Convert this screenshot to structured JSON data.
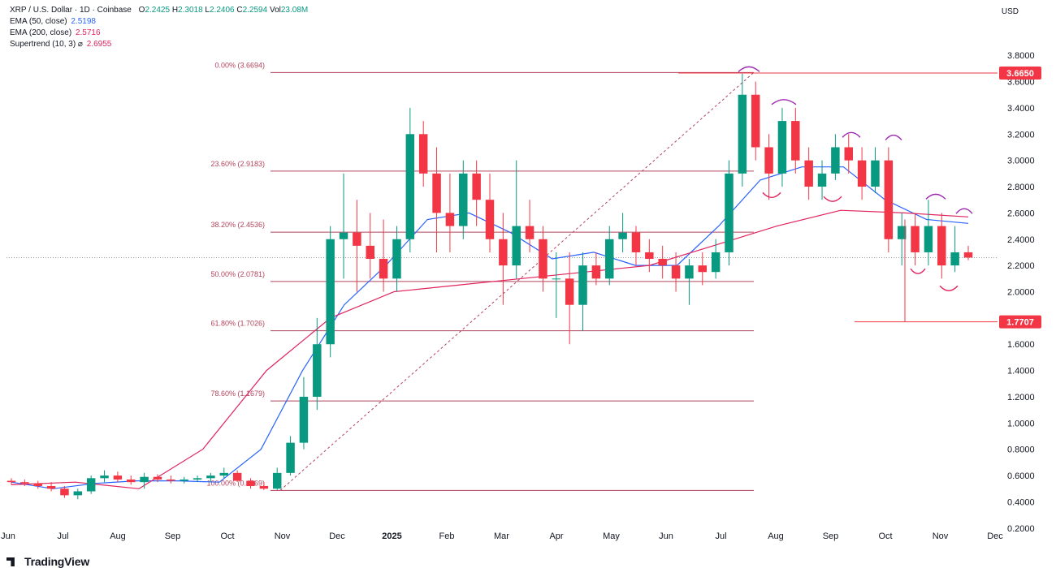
{
  "header": {
    "symbol": "XRP / U.S. Dollar · 1D · Coinbase",
    "ohlc": [
      {
        "k": "O",
        "v": "2.2425"
      },
      {
        "k": "H",
        "v": "2.3018"
      },
      {
        "k": "L",
        "v": "2.2406"
      },
      {
        "k": "C",
        "v": "2.2594"
      }
    ],
    "vol_label": "Vol",
    "vol_value": "23.08M",
    "indicators": [
      {
        "label": "EMA (50, close)",
        "value": "2.5198",
        "color": "#2962ff"
      },
      {
        "label": "EMA (200, close)",
        "value": "2.5716",
        "color": "#e0245e"
      },
      {
        "label": "Supertrend (10, 3)  ⌀",
        "value": "2.6955",
        "color": "#e0245e"
      }
    ],
    "currency": "USD"
  },
  "branding": "TradingView",
  "chart_data": {
    "type": "candlestick",
    "ylim": [
      0.1,
      3.9
    ],
    "y_ticks": [
      "3.8000",
      "3.6000",
      "3.4000",
      "3.2000",
      "3.0000",
      "2.8000",
      "2.6000",
      "2.4000",
      "2.2000",
      "2.0000",
      "1.6000",
      "1.4000",
      "1.2000",
      "1.0000",
      "0.8000",
      "0.6000",
      "0.4000",
      "0.2000"
    ],
    "x_ticks": [
      "Jun",
      "Jul",
      "Aug",
      "Sep",
      "Oct",
      "Nov",
      "Dec",
      "2025",
      "Feb",
      "Mar",
      "Apr",
      "May",
      "Jun",
      "Jul",
      "Aug",
      "Sep",
      "Oct",
      "Nov",
      "Dec"
    ],
    "price_labels": [
      {
        "value": "3.6650",
        "price": 3.665,
        "color": "#f23645"
      },
      {
        "value": "1.7707",
        "price": 1.7707,
        "color": "#f23645"
      }
    ],
    "fib_levels": [
      {
        "label": "0.00% (3.6694)",
        "price": 3.6694
      },
      {
        "label": "23.60% (2.9183)",
        "price": 2.9183
      },
      {
        "label": "38.20% (2.4536)",
        "price": 2.4536
      },
      {
        "label": "50.00% (2.0781)",
        "price": 2.0781
      },
      {
        "label": "61.80% (1.7026)",
        "price": 1.7026
      },
      {
        "label": "78.60% (1.1679)",
        "price": 1.1679
      },
      {
        "label": "100.00% (0.4869)",
        "price": 0.4869
      }
    ],
    "current_price": 2.2594,
    "series": [
      {
        "name": "EMA (50, close)",
        "color": "#2962ff",
        "points": [
          [
            "Jun",
            0.55
          ],
          [
            "Jul",
            0.5
          ],
          [
            "Aug",
            0.54
          ],
          [
            "Sep",
            0.56
          ],
          [
            "Oct",
            0.56
          ],
          [
            "Nov",
            0.55
          ],
          [
            "mid-Nov",
            0.8
          ],
          [
            "Dec",
            1.4
          ],
          [
            "mid-Dec",
            1.9
          ],
          [
            "2025",
            2.2
          ],
          [
            "mid-Jan",
            2.55
          ],
          [
            "Feb",
            2.6
          ],
          [
            "Mar",
            2.45
          ],
          [
            "Apr",
            2.25
          ],
          [
            "May",
            2.3
          ],
          [
            "Jun",
            2.2
          ],
          [
            "Jul",
            2.2
          ],
          [
            "mid-Jul",
            2.5
          ],
          [
            "Aug",
            2.85
          ],
          [
            "Sep",
            2.95
          ],
          [
            "Oct",
            2.95
          ],
          [
            "mid-Oct",
            2.7
          ],
          [
            "Nov",
            2.55
          ],
          [
            "mid-Nov",
            2.52
          ]
        ]
      },
      {
        "name": "EMA (200, close)",
        "color": "#e0245e",
        "points": [
          [
            "Jun",
            0.53
          ],
          [
            "Sep",
            0.55
          ],
          [
            "Nov",
            0.5
          ],
          [
            "Dec",
            0.8
          ],
          [
            "2025",
            1.4
          ],
          [
            "Feb",
            1.8
          ],
          [
            "Mar",
            2.0
          ],
          [
            "Apr",
            2.05
          ],
          [
            "May",
            2.1
          ],
          [
            "Jun",
            2.15
          ],
          [
            "Jul",
            2.2
          ],
          [
            "Aug",
            2.35
          ],
          [
            "Sep",
            2.5
          ],
          [
            "Oct",
            2.62
          ],
          [
            "Nov",
            2.6
          ],
          [
            "mid-Nov",
            2.57
          ]
        ]
      }
    ],
    "candles": [
      [
        0.56,
        0.58,
        0.53,
        0.55
      ],
      [
        0.55,
        0.57,
        0.52,
        0.54
      ],
      [
        0.54,
        0.56,
        0.5,
        0.52
      ],
      [
        0.52,
        0.55,
        0.48,
        0.5
      ],
      [
        0.5,
        0.52,
        0.43,
        0.45
      ],
      [
        0.45,
        0.5,
        0.42,
        0.48
      ],
      [
        0.48,
        0.6,
        0.46,
        0.58
      ],
      [
        0.58,
        0.64,
        0.55,
        0.6
      ],
      [
        0.6,
        0.63,
        0.55,
        0.57
      ],
      [
        0.57,
        0.6,
        0.53,
        0.55
      ],
      [
        0.55,
        0.62,
        0.5,
        0.59
      ],
      [
        0.59,
        0.61,
        0.55,
        0.57
      ],
      [
        0.57,
        0.6,
        0.54,
        0.56
      ],
      [
        0.56,
        0.59,
        0.54,
        0.57
      ],
      [
        0.57,
        0.6,
        0.55,
        0.58
      ],
      [
        0.58,
        0.62,
        0.55,
        0.6
      ],
      [
        0.6,
        0.66,
        0.58,
        0.62
      ],
      [
        0.62,
        0.64,
        0.55,
        0.56
      ],
      [
        0.56,
        0.58,
        0.5,
        0.52
      ],
      [
        0.52,
        0.55,
        0.49,
        0.5
      ],
      [
        0.5,
        0.66,
        0.49,
        0.62
      ],
      [
        0.62,
        0.9,
        0.6,
        0.85
      ],
      [
        0.85,
        1.35,
        0.8,
        1.2
      ],
      [
        1.2,
        1.8,
        1.1,
        1.6
      ],
      [
        1.6,
        2.5,
        1.5,
        2.4
      ],
      [
        2.4,
        2.9,
        2.1,
        2.45
      ],
      [
        2.45,
        2.7,
        2.0,
        2.35
      ],
      [
        2.35,
        2.6,
        2.1,
        2.25
      ],
      [
        2.25,
        2.55,
        2.0,
        2.1
      ],
      [
        2.1,
        2.5,
        2.0,
        2.4
      ],
      [
        2.4,
        3.4,
        2.3,
        3.2
      ],
      [
        3.2,
        3.3,
        2.8,
        2.9
      ],
      [
        2.9,
        3.1,
        2.3,
        2.6
      ],
      [
        2.6,
        2.9,
        2.3,
        2.5
      ],
      [
        2.5,
        3.0,
        2.4,
        2.9
      ],
      [
        2.9,
        3.0,
        2.5,
        2.7
      ],
      [
        2.7,
        2.9,
        2.3,
        2.4
      ],
      [
        2.4,
        2.6,
        1.9,
        2.2
      ],
      [
        2.2,
        3.0,
        2.1,
        2.5
      ],
      [
        2.5,
        2.7,
        2.3,
        2.4
      ],
      [
        2.4,
        2.5,
        2.0,
        2.1
      ],
      [
        2.1,
        2.3,
        1.8,
        2.1
      ],
      [
        2.1,
        2.3,
        1.6,
        1.9
      ],
      [
        1.9,
        2.3,
        1.7,
        2.2
      ],
      [
        2.2,
        2.3,
        2.05,
        2.1
      ],
      [
        2.1,
        2.5,
        2.05,
        2.4
      ],
      [
        2.4,
        2.6,
        2.3,
        2.45
      ],
      [
        2.45,
        2.5,
        2.2,
        2.3
      ],
      [
        2.3,
        2.4,
        2.15,
        2.25
      ],
      [
        2.25,
        2.35,
        2.1,
        2.2
      ],
      [
        2.2,
        2.3,
        2.0,
        2.1
      ],
      [
        2.1,
        2.25,
        1.9,
        2.2
      ],
      [
        2.2,
        2.3,
        2.05,
        2.15
      ],
      [
        2.15,
        2.4,
        2.1,
        2.3
      ],
      [
        2.3,
        3.0,
        2.2,
        2.9
      ],
      [
        2.9,
        3.66,
        2.8,
        3.5
      ],
      [
        3.5,
        3.6,
        3.0,
        3.1
      ],
      [
        3.1,
        3.2,
        2.7,
        2.9
      ],
      [
        2.9,
        3.4,
        2.8,
        3.3
      ],
      [
        3.3,
        3.4,
        2.9,
        3.0
      ],
      [
        3.0,
        3.1,
        2.7,
        2.8
      ],
      [
        2.8,
        3.0,
        2.7,
        2.9
      ],
      [
        2.9,
        3.2,
        2.85,
        3.1
      ],
      [
        3.1,
        3.2,
        2.9,
        3.0
      ],
      [
        3.0,
        3.1,
        2.7,
        2.8
      ],
      [
        2.8,
        3.1,
        2.75,
        3.0
      ],
      [
        3.0,
        3.1,
        2.3,
        2.4
      ],
      [
        2.4,
        2.6,
        2.2,
        2.5
      ],
      [
        2.5,
        2.6,
        2.2,
        2.3
      ],
      [
        2.3,
        2.7,
        2.2,
        2.5
      ],
      [
        2.5,
        2.6,
        2.1,
        2.2
      ],
      [
        2.2,
        2.5,
        2.15,
        2.3
      ],
      [
        2.3,
        2.35,
        2.24,
        2.26
      ]
    ]
  }
}
